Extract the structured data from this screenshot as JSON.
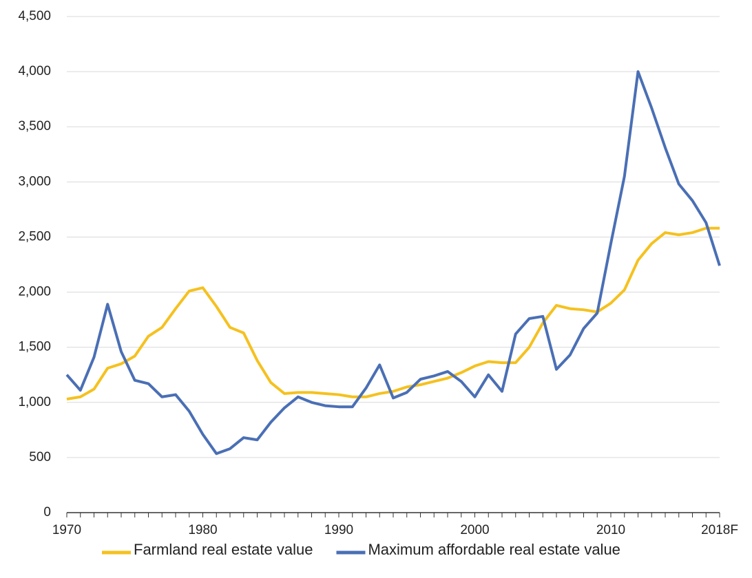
{
  "chart_data": {
    "type": "line",
    "categories": [
      "1970",
      null,
      null,
      null,
      null,
      null,
      null,
      null,
      null,
      null,
      "1980",
      null,
      null,
      null,
      null,
      null,
      null,
      null,
      null,
      null,
      "1990",
      null,
      null,
      null,
      null,
      null,
      null,
      null,
      null,
      null,
      "2000",
      null,
      null,
      null,
      null,
      null,
      null,
      null,
      null,
      null,
      "2010",
      null,
      null,
      null,
      null,
      null,
      null,
      null,
      "2018F"
    ],
    "series": [
      {
        "name": "Farmland real estate value",
        "color": "#f5c11f",
        "values": [
          1030,
          1050,
          1120,
          1310,
          1350,
          1420,
          1600,
          1680,
          1850,
          2010,
          2040,
          1870,
          1680,
          1630,
          1380,
          1180,
          1080,
          1090,
          1090,
          1080,
          1070,
          1050,
          1050,
          1080,
          1100,
          1140,
          1160,
          1190,
          1220,
          1270,
          1330,
          1370,
          1360,
          1360,
          1500,
          1720,
          1880,
          1850,
          1840,
          1820,
          1900,
          2020,
          2290,
          2440,
          2540,
          2520,
          2540,
          2580,
          2580
        ]
      },
      {
        "name": "Maximum affordable real estate value",
        "color": "#4a6fb5",
        "values": [
          1250,
          1110,
          1410,
          1890,
          1460,
          1200,
          1170,
          1050,
          1070,
          920,
          710,
          535,
          580,
          680,
          660,
          820,
          950,
          1050,
          1000,
          970,
          960,
          960,
          1130,
          1340,
          1040,
          1090,
          1210,
          1240,
          1280,
          1190,
          1050,
          1250,
          1100,
          1620,
          1760,
          1780,
          1300,
          1430,
          1670,
          1810,
          2440,
          3050,
          4000,
          3670,
          3310,
          2980,
          2830,
          2630,
          2240
        ]
      }
    ],
    "ylim": [
      0,
      4500
    ],
    "yticks": [
      0,
      500,
      {
        "value": 1000,
        "label": "1,000"
      },
      {
        "value": 1500,
        "label": "1,500"
      },
      {
        "value": 2000,
        "label": "2,000"
      },
      {
        "value": 2500,
        "label": "2,500"
      },
      {
        "value": 3000,
        "label": "3,000"
      },
      {
        "value": 3500,
        "label": "3,500"
      },
      {
        "value": 4000,
        "label": "4,000"
      },
      {
        "value": 4500,
        "label": "4,500"
      }
    ],
    "grid": true
  }
}
